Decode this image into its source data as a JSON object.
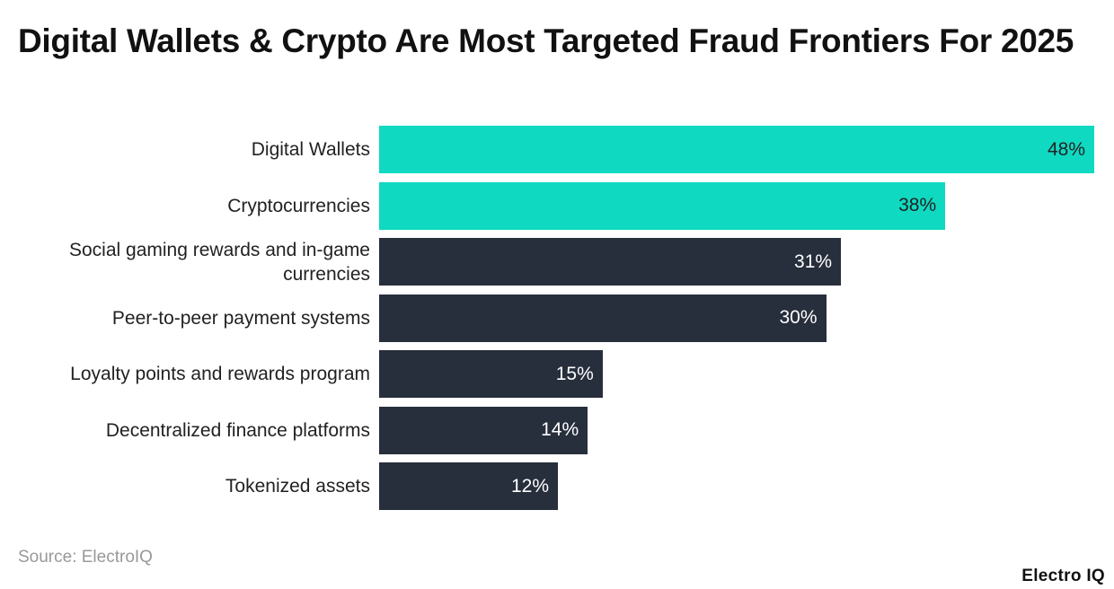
{
  "chart_data": {
    "type": "bar",
    "orientation": "horizontal",
    "title": "Digital Wallets & Crypto Are Most Targeted Fraud Frontiers For 2025",
    "categories": [
      "Digital Wallets",
      "Cryptocurrencies",
      "Social gaming rewards and in-game currencies",
      "Peer-to-peer payment systems",
      "Loyalty points and rewards program",
      "Decentralized finance platforms",
      "Tokenized assets"
    ],
    "values": [
      48,
      38,
      31,
      30,
      15,
      14,
      12
    ],
    "value_labels": [
      "48%",
      "38%",
      "31%",
      "30%",
      "15%",
      "14%",
      "12%"
    ],
    "xlim": [
      0,
      48
    ],
    "highlight_count": 2,
    "colors": {
      "highlight": "#10d9c1",
      "default": "#272e3c",
      "highlight_text": "#222222",
      "default_text": "#ffffff"
    },
    "grid": false
  },
  "source": "Source: ElectroIQ",
  "logo": "Electro IQ"
}
